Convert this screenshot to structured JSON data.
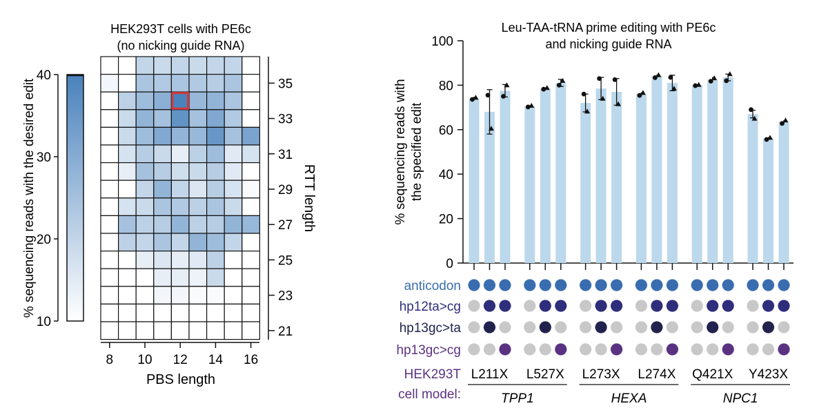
{
  "chart_data": [
    {
      "type": "heatmap",
      "title": "HEK293T cells with PE6c",
      "subtitle": "(no nicking guide RNA)",
      "xlabel": "PBS length",
      "ylabel": "RTT length",
      "x_tick_labels": [
        "8",
        "10",
        "12",
        "14",
        "16"
      ],
      "y_tick_labels": [
        "35",
        "33",
        "31",
        "29",
        "27",
        "25",
        "23",
        "21"
      ],
      "x_values": [
        8,
        9,
        10,
        11,
        12,
        13,
        14,
        15,
        16
      ],
      "y_values": [
        36,
        35,
        34,
        33,
        32,
        31,
        30,
        29,
        28,
        27,
        26,
        25,
        24,
        23,
        22,
        21
      ],
      "colorbar": {
        "label": "% sequencing reads with the desired edit",
        "min": 10,
        "max": 40,
        "ticks": [
          "40",
          "30",
          "20",
          "10"
        ],
        "low_color": "#ffffff",
        "high_color": "#4a82bc"
      },
      "values": [
        [
          10,
          10,
          20,
          19,
          20,
          19,
          20,
          20,
          10
        ],
        [
          12,
          10,
          24,
          23,
          24,
          23,
          22,
          24,
          10
        ],
        [
          10,
          21,
          26,
          29,
          40,
          27,
          28,
          24,
          10
        ],
        [
          10,
          19,
          28,
          25,
          36,
          25,
          31,
          23,
          10
        ],
        [
          10,
          19,
          26,
          31,
          28,
          27,
          35,
          25,
          32
        ],
        [
          10,
          17,
          22,
          19,
          14,
          21,
          26,
          15,
          17
        ],
        [
          10,
          14,
          25,
          22,
          18,
          19,
          22,
          15,
          10
        ],
        [
          10,
          10,
          20,
          28,
          20,
          16,
          22,
          17,
          11
        ],
        [
          10,
          17,
          19,
          24,
          23,
          21,
          24,
          19,
          10
        ],
        [
          10,
          25,
          21,
          22,
          28,
          21,
          22,
          28,
          27
        ],
        [
          10,
          21,
          20,
          24,
          20,
          28,
          26,
          20,
          10
        ],
        [
          10,
          10,
          14,
          16,
          14,
          15,
          21,
          10,
          10
        ],
        [
          10,
          10,
          10,
          14,
          14,
          13,
          19,
          10,
          10
        ],
        [
          10,
          10,
          10,
          12,
          12,
          11,
          11,
          10,
          10
        ],
        [
          10,
          10,
          10,
          10,
          10,
          10,
          10,
          10,
          10
        ],
        [
          10,
          10,
          10,
          10,
          10,
          10,
          10,
          10,
          10
        ]
      ],
      "highlight": {
        "x": 12,
        "y": 34,
        "color": "#d43a3a"
      }
    },
    {
      "type": "bar",
      "title": "Leu-TAA-tRNA prime editing with PE6c",
      "subtitle": "and nicking guide RNA",
      "ylabel": "% sequencing reads with the specified edit",
      "ylim": [
        0,
        100
      ],
      "y_ticks": [
        "0",
        "20",
        "40",
        "60",
        "80",
        "100"
      ],
      "bar_color": "#bcd8ec",
      "values": [
        74,
        68,
        77.5,
        70.5,
        78.5,
        81,
        72,
        78.5,
        77,
        76,
        84,
        81,
        80,
        82.5,
        83.5,
        67,
        56,
        63.5
      ],
      "errors": [
        0.8,
        10,
        2.8,
        0.5,
        0.5,
        1.6,
        4,
        5,
        6,
        0.8,
        0.7,
        3.5,
        0.4,
        1.2,
        1.5,
        1.7,
        0.6,
        0.8
      ],
      "points": [
        [
          73.6,
          74.4
        ],
        [
          75.5,
          60.5
        ],
        [
          75,
          80
        ],
        [
          70.2,
          70.8
        ],
        [
          78.2,
          78.8
        ],
        [
          80,
          82
        ],
        [
          76,
          68.2
        ],
        [
          83,
          74
        ],
        [
          82.5,
          71.5
        ],
        [
          75.4,
          76.6
        ],
        [
          83.4,
          84.6
        ],
        [
          83.5,
          78.5
        ],
        [
          79.8,
          80.2
        ],
        [
          81.8,
          83.2
        ],
        [
          82,
          85
        ],
        [
          69,
          65
        ],
        [
          55.6,
          56.4
        ],
        [
          62.8,
          64.2
        ]
      ],
      "matrix": {
        "rows": [
          {
            "label": "anticodon",
            "color": "#3a6db0"
          },
          {
            "label": "hp12ta>cg",
            "color": "#2e2e7c"
          },
          {
            "label": "hp13gc>ta",
            "color": "#22224e"
          },
          {
            "label": "hp13gc>cg",
            "color": "#5a3282"
          }
        ],
        "inactive_color": "#c8c8c8",
        "pattern": [
          [
            1,
            1,
            1,
            1,
            1,
            1,
            1,
            1,
            1,
            1,
            1,
            1,
            1,
            1,
            1,
            1,
            1,
            1
          ],
          [
            0,
            1,
            1,
            0,
            1,
            1,
            0,
            1,
            1,
            0,
            1,
            1,
            0,
            1,
            1,
            0,
            1,
            1
          ],
          [
            0,
            1,
            0,
            0,
            1,
            0,
            0,
            1,
            0,
            0,
            1,
            0,
            0,
            1,
            0,
            0,
            1,
            0
          ],
          [
            0,
            0,
            1,
            0,
            0,
            1,
            0,
            0,
            1,
            0,
            0,
            1,
            0,
            0,
            1,
            0,
            0,
            1
          ]
        ]
      },
      "model_label_line1": "HEK293T",
      "model_label_line2": "cell model:",
      "model_label_color": "#5a3282",
      "groups": [
        "L211X",
        "L527X",
        "L273X",
        "L274X",
        "Q421X",
        "Y423X"
      ],
      "genes": [
        "TPP1",
        "HEXA",
        "NPC1"
      ]
    }
  ]
}
